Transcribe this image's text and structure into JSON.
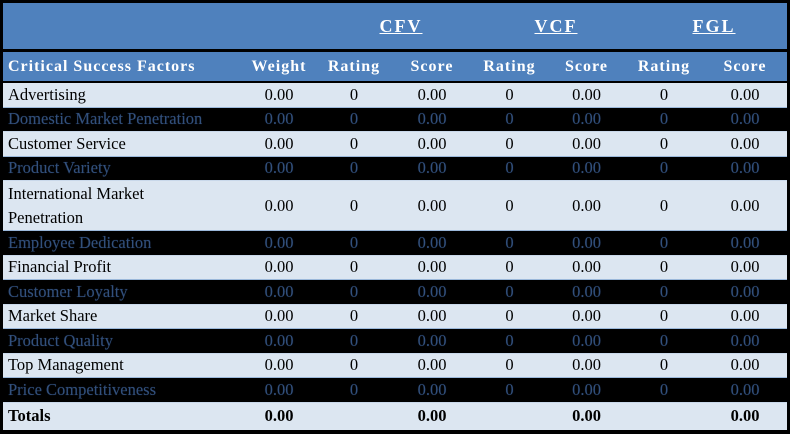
{
  "table": {
    "column_groups": [
      {
        "label": "CFV"
      },
      {
        "label": "VCF"
      },
      {
        "label": "FGL"
      }
    ],
    "header": {
      "factors": "Critical Success Factors",
      "weight": "Weight",
      "rating": "Rating",
      "score": "Score"
    },
    "rows": [
      {
        "label": "Advertising",
        "variant": "light",
        "tall": false,
        "values": [
          "0.00",
          "0",
          "0.00",
          "0",
          "0.00",
          "0",
          "0.00"
        ]
      },
      {
        "label": "Domestic Market Penetration",
        "variant": "dark",
        "tall": false,
        "values": [
          "0.00",
          "0",
          "0.00",
          "0",
          "0.00",
          "0",
          "0.00"
        ]
      },
      {
        "label": "Customer Service",
        "variant": "light",
        "tall": false,
        "values": [
          "0.00",
          "0",
          "0.00",
          "0",
          "0.00",
          "0",
          "0.00"
        ]
      },
      {
        "label": "Product Variety",
        "variant": "dark",
        "tall": false,
        "values": [
          "0.00",
          "0",
          "0.00",
          "0",
          "0.00",
          "0",
          "0.00"
        ]
      },
      {
        "label": "International Market Penetration",
        "variant": "light",
        "tall": true,
        "values": [
          "0.00",
          "0",
          "0.00",
          "0",
          "0.00",
          "0",
          "0.00"
        ]
      },
      {
        "label": "Employee Dedication",
        "variant": "dark",
        "tall": false,
        "values": [
          "0.00",
          "0",
          "0.00",
          "0",
          "0.00",
          "0",
          "0.00"
        ]
      },
      {
        "label": "Financial Profit",
        "variant": "light",
        "tall": false,
        "values": [
          "0.00",
          "0",
          "0.00",
          "0",
          "0.00",
          "0",
          "0.00"
        ]
      },
      {
        "label": "Customer Loyalty",
        "variant": "dark",
        "tall": false,
        "values": [
          "0.00",
          "0",
          "0.00",
          "0",
          "0.00",
          "0",
          "0.00"
        ]
      },
      {
        "label": "Market Share",
        "variant": "light",
        "tall": false,
        "values": [
          "0.00",
          "0",
          "0.00",
          "0",
          "0.00",
          "0",
          "0.00"
        ]
      },
      {
        "label": "Product Quality",
        "variant": "dark",
        "tall": false,
        "values": [
          "0.00",
          "0",
          "0.00",
          "0",
          "0.00",
          "0",
          "0.00"
        ]
      },
      {
        "label": "Top Management",
        "variant": "light",
        "tall": false,
        "values": [
          "0.00",
          "0",
          "0.00",
          "0",
          "0.00",
          "0",
          "0.00"
        ]
      },
      {
        "label": "Price Competitiveness",
        "variant": "dark",
        "tall": false,
        "values": [
          "0.00",
          "0",
          "0.00",
          "0",
          "0.00",
          "0",
          "0.00"
        ]
      }
    ],
    "totals": {
      "label": "Totals",
      "values": [
        "0.00",
        "",
        "0.00",
        "",
        "0.00",
        "",
        "0.00"
      ]
    }
  },
  "colors": {
    "header_bg": "#4f81bd",
    "header_text": "#ffffff",
    "light_row_bg": "#dce6f1",
    "dark_row_bg": "#000000",
    "dark_row_text": "#32507c",
    "body_text": "#000000",
    "border": "#000000"
  }
}
